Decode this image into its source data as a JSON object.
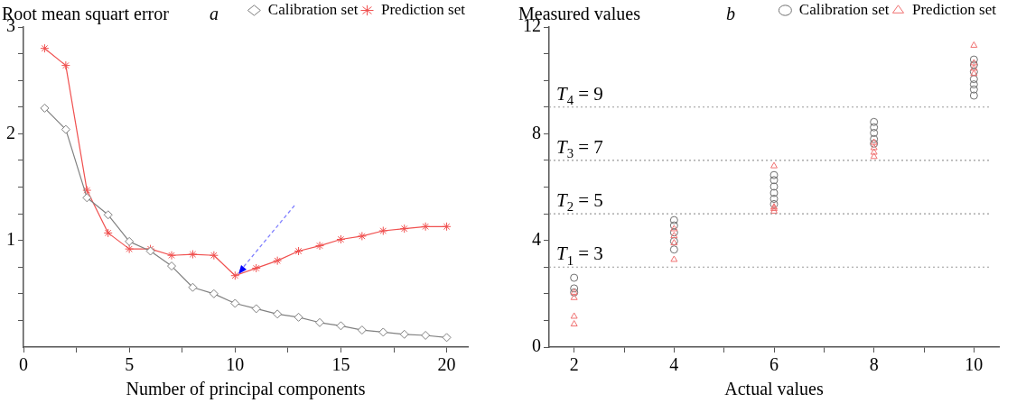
{
  "chart_data": [
    {
      "type": "line",
      "title": "a",
      "xlabel": "Number of principal components",
      "ylabel": "Root mean squart error",
      "x": [
        1,
        2,
        3,
        4,
        5,
        6,
        7,
        8,
        9,
        10,
        11,
        12,
        13,
        14,
        15,
        16,
        17,
        18,
        19,
        20
      ],
      "series": [
        {
          "name": "Calibration set",
          "color": "#808080",
          "marker": "diamond",
          "values": [
            2.24,
            2.04,
            1.4,
            1.24,
            0.99,
            0.9,
            0.76,
            0.56,
            0.5,
            0.41,
            0.36,
            0.31,
            0.28,
            0.23,
            0.2,
            0.16,
            0.14,
            0.12,
            0.11,
            0.09
          ]
        },
        {
          "name": "Prediction set",
          "color": "#f0504f",
          "marker": "cross",
          "values": [
            2.8,
            2.64,
            1.47,
            1.07,
            0.92,
            0.92,
            0.86,
            0.87,
            0.86,
            0.67,
            0.74,
            0.81,
            0.9,
            0.95,
            1.01,
            1.04,
            1.09,
            1.11,
            1.13,
            1.13
          ]
        }
      ],
      "xlim": [
        0,
        21
      ],
      "xticks": [
        0,
        {
          "value": 2.5,
          "label": null
        },
        5,
        {
          "value": 7.5,
          "label": null
        },
        10,
        {
          "value": 12.5,
          "label": null
        },
        15,
        {
          "value": 17.5,
          "label": null
        },
        20
      ],
      "ylim": [
        0,
        3
      ],
      "yticks": [
        {
          "value": 0.25,
          "label": null
        },
        {
          "value": 0.5,
          "label": null
        },
        {
          "value": 0.75,
          "label": null
        },
        1,
        {
          "value": 1.25,
          "label": null
        },
        {
          "value": 1.5,
          "label": null
        },
        {
          "value": 1.75,
          "label": null
        },
        2,
        {
          "value": 2.25,
          "label": null
        },
        {
          "value": 2.5,
          "label": null
        },
        {
          "value": 2.75,
          "label": null
        },
        3
      ],
      "grid": false,
      "legend": "top right",
      "line_style": "solid"
    },
    {
      "type": "scatter",
      "title": "b",
      "xlabel": "Actual values",
      "ylabel": "Measured values",
      "series": [
        {
          "name": "Calibration set",
          "color": "#707070",
          "marker": "circle",
          "x": [
            2,
            2,
            2,
            4,
            4,
            4,
            4,
            4,
            6,
            6,
            6,
            6,
            6,
            6,
            8,
            8,
            8,
            8,
            8,
            10,
            10,
            10,
            10,
            10,
            10,
            10
          ],
          "values": [
            2.6,
            2.2,
            2.05,
            4.76,
            4.56,
            4.3,
            3.97,
            3.66,
            6.45,
            6.26,
            6.02,
            5.78,
            5.56,
            5.36,
            8.44,
            8.24,
            8.03,
            7.8,
            7.63,
            10.78,
            10.58,
            10.32,
            10.05,
            9.85,
            9.66,
            9.43
          ]
        },
        {
          "name": "Prediction set",
          "color": "#f07070",
          "marker": "triangle",
          "x": [
            2,
            2,
            2,
            2,
            4,
            4,
            4,
            4,
            6,
            6,
            6,
            6,
            8,
            8,
            8,
            8,
            10,
            10,
            10,
            10
          ],
          "values": [
            1.85,
            2.05,
            1.15,
            0.86,
            4.43,
            4.17,
            3.9,
            3.28,
            6.79,
            5.25,
            5.09,
            5.19,
            7.67,
            7.47,
            7.3,
            7.14,
            11.31,
            10.65,
            10.45,
            10.25
          ]
        }
      ],
      "xlim": [
        1.5,
        10.5
      ],
      "xticks": [
        2,
        {
          "value": 3,
          "label": null
        },
        4,
        {
          "value": 5,
          "label": null
        },
        6,
        {
          "value": 7,
          "label": null
        },
        8,
        {
          "value": 9,
          "label": null
        },
        10
      ],
      "ylim": [
        0,
        12
      ],
      "yticks": [
        0,
        {
          "value": 1,
          "label": null
        },
        {
          "value": 2,
          "label": null
        },
        {
          "value": 3,
          "label": null
        },
        4,
        {
          "value": 5,
          "label": null
        },
        {
          "value": 6,
          "label": null
        },
        {
          "value": 7,
          "label": null
        },
        8,
        {
          "value": 9,
          "label": null
        },
        {
          "value": 10,
          "label": null
        },
        {
          "value": 11,
          "label": null
        },
        12
      ],
      "ref_lines": [
        {
          "axis": "y",
          "value": 3,
          "label": "T$_{1}$ = 3",
          "color": "#999999",
          "line_style": "dotted"
        },
        {
          "axis": "y",
          "value": 5,
          "label": "T$_{2}$ = 5",
          "color": "#999999",
          "line_style": "dotted"
        },
        {
          "axis": "y",
          "value": 7,
          "label": "T$_{3}$ = 7",
          "color": "#999999",
          "line_style": "dotted"
        },
        {
          "axis": "y",
          "value": 9,
          "label": "T$_{4}$ = 9",
          "color": "#999999",
          "line_style": "dotted"
        }
      ],
      "grid": false,
      "legend": "top right"
    }
  ]
}
